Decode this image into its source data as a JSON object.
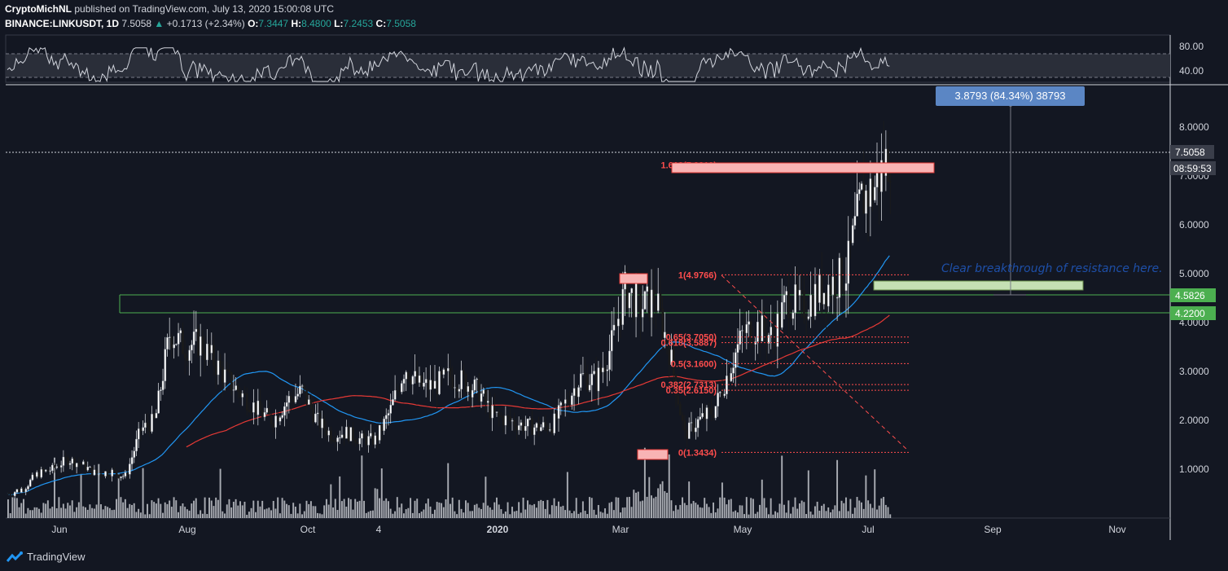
{
  "header": {
    "author": "CryptoMichNL",
    "published": "published on TradingView.com, July 13, 2020 15:00:08 UTC",
    "symbol": "BINANCE:LINKUSDT, 1D",
    "last": "7.5058",
    "change": "+0.1713 (+2.34%)",
    "o_label": "O:",
    "o": "7.3447",
    "h_label": "H:",
    "h": "8.4800",
    "l_label": "L:",
    "l": "7.2453",
    "c_label": "C:",
    "c": "7.5058"
  },
  "footer": {
    "brand": "TradingView"
  },
  "measure": {
    "label": "3.8793 (84.34%) 38793"
  },
  "annotation": {
    "text": "Clear breakthrough of resistance here."
  },
  "price_tags": {
    "last_price": "7.5058",
    "countdown": "08:59:53",
    "resistance_upper": "4.5826",
    "resistance_lower": "4.2200"
  },
  "rsi_axis": [
    "80.00",
    "40.00"
  ],
  "colors": {
    "background": "#131722",
    "up": "#26a69a",
    "down": "#ef5350",
    "ma_short": "#2196f3",
    "ma_long": "#e53935",
    "fib": "#ff4d4d",
    "resistance": "#4caf50",
    "measure": "#5b86c4"
  },
  "chart_data": {
    "type": "candlestick",
    "symbol": "BINANCE:LINKUSDT",
    "timeframe": "1D",
    "y_ticks": [
      "8.0000",
      "7.0000",
      "6.0000",
      "5.0000",
      "4.0000",
      "3.0000",
      "2.0000",
      "1.0000"
    ],
    "ylim": [
      0.0,
      8.8
    ],
    "x_ticks": [
      "Jun",
      "Aug",
      "Oct",
      "4",
      "2020",
      "Mar",
      "May",
      "Jul",
      "Sep",
      "Nov"
    ],
    "fib_levels": [
      {
        "label": "1.618(7.2219)",
        "value": 7.2219
      },
      {
        "label": "1(4.9766)",
        "value": 4.9766
      },
      {
        "label": "0.65(3.7050)",
        "value": 3.705
      },
      {
        "label": "0.618(3.5887)",
        "value": 3.5887
      },
      {
        "label": "0.5(3.1600)",
        "value": 3.16
      },
      {
        "label": "0.382(2.7313)",
        "value": 2.7313
      },
      {
        "label": "0.35(2.6150)",
        "value": 2.615
      },
      {
        "label": "0(1.3434)",
        "value": 1.3434
      }
    ],
    "resistance": [
      4.5826,
      4.22
    ],
    "price_path": [
      [
        0.46,
        0.5
      ],
      [
        0.6,
        0.6
      ],
      [
        0.8,
        0.9
      ],
      [
        1.1,
        1.0
      ],
      [
        1.3,
        1.2
      ],
      [
        1.45,
        1.1
      ],
      [
        1.25,
        0.9
      ],
      [
        1.0,
        0.95
      ],
      [
        1.1,
        0.85
      ],
      [
        1.4,
        1.8
      ],
      [
        2.2,
        2.0
      ],
      [
        3.8,
        3.8
      ],
      [
        3.2,
        3.5
      ],
      [
        3.3,
        3.6
      ],
      [
        3.4,
        3.2
      ],
      [
        3.2,
        2.8
      ],
      [
        2.6,
        2.5
      ],
      [
        2.3,
        2.2
      ],
      [
        2.1,
        2.0
      ],
      [
        2.3,
        2.4
      ],
      [
        2.5,
        2.6
      ],
      [
        2.3,
        2.0
      ],
      [
        1.8,
        1.7
      ],
      [
        1.6,
        1.75
      ],
      [
        1.7,
        1.6
      ],
      [
        1.5,
        1.6
      ],
      [
        1.7,
        2.2
      ],
      [
        2.6,
        3.1
      ],
      [
        2.9,
        2.7
      ],
      [
        2.5,
        2.7
      ],
      [
        2.8,
        2.9
      ],
      [
        2.7,
        2.8
      ],
      [
        3.0,
        2.6
      ],
      [
        2.2,
        2.1
      ],
      [
        2.05,
        2.0
      ],
      [
        2.1,
        1.9
      ],
      [
        1.8,
        1.85
      ],
      [
        1.75,
        1.9
      ],
      [
        2.1,
        2.4
      ],
      [
        2.6,
        2.9
      ],
      [
        2.8,
        2.8
      ],
      [
        2.9,
        3.5
      ],
      [
        4.2,
        4.7
      ],
      [
        4.1,
        4.3
      ],
      [
        4.7,
        4.5
      ],
      [
        3.9,
        3.4
      ],
      [
        3.2,
        1.7
      ],
      [
        2.2,
        2.0
      ],
      [
        2.3,
        2.2
      ],
      [
        2.5,
        3.0
      ],
      [
        3.4,
        3.8
      ],
      [
        3.6,
        3.9
      ],
      [
        3.8,
        3.7
      ],
      [
        4.1,
        4.5
      ],
      [
        4.0,
        4.3
      ],
      [
        3.9,
        4.6
      ],
      [
        4.9,
        4.8
      ],
      [
        4.7,
        5.0
      ],
      [
        6.3,
        6.5
      ],
      [
        6.0,
        6.8
      ],
      [
        7.5,
        7.5058
      ]
    ]
  }
}
